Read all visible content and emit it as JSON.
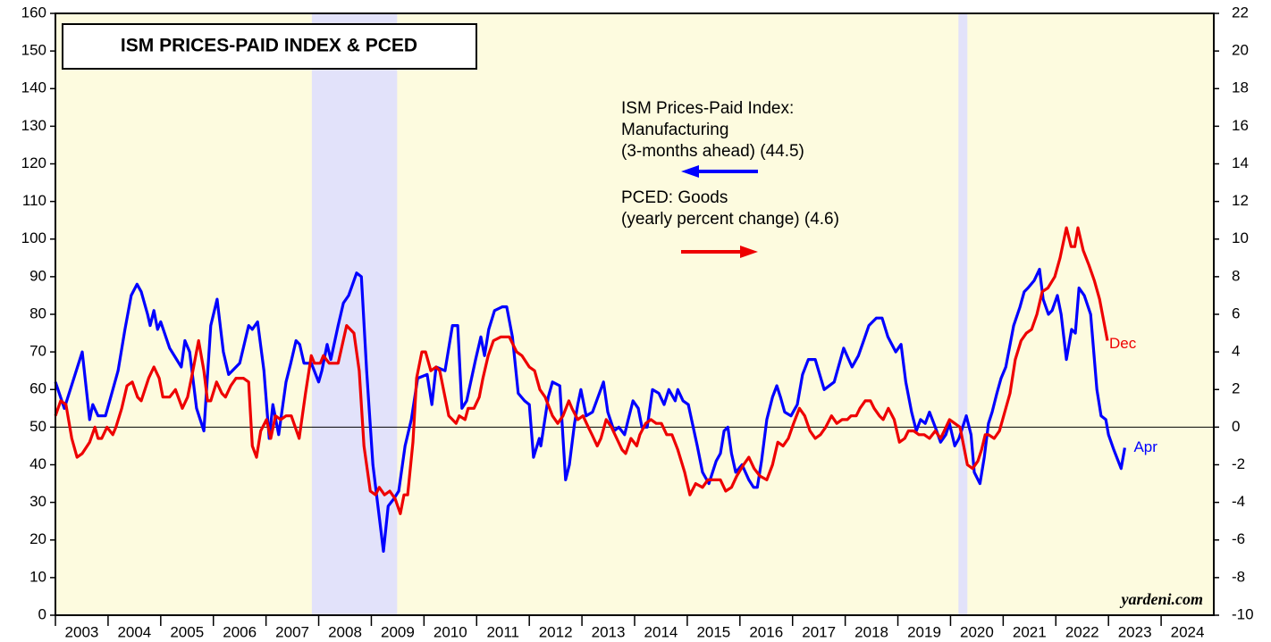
{
  "chart_data": {
    "type": "line",
    "title": "ISM PRICES-PAID INDEX & PCED",
    "credit": "yardeni.com",
    "categories": [
      "2003",
      "2004",
      "2005",
      "2006",
      "2007",
      "2008",
      "2009",
      "2010",
      "2011",
      "2012",
      "2013",
      "2014",
      "2015",
      "2016",
      "2017",
      "2018",
      "2019",
      "2020",
      "2021",
      "2022",
      "2023",
      "2024"
    ],
    "xlim": [
      2003,
      2025
    ],
    "ylim": [
      0,
      160
    ],
    "yticks": [
      0,
      10,
      20,
      30,
      40,
      50,
      60,
      70,
      80,
      90,
      100,
      110,
      120,
      130,
      140,
      150,
      160
    ],
    "y2lim": [
      -10,
      22
    ],
    "y2ticks": [
      -10,
      -8,
      -6,
      -4,
      -2,
      0,
      2,
      4,
      6,
      8,
      10,
      12,
      14,
      16,
      18,
      20,
      22
    ],
    "hline": 50,
    "shaded": [
      [
        2007.87,
        2009.49
      ],
      [
        2020.15,
        2020.32
      ]
    ],
    "series": [
      {
        "label_lines": [
          "ISM Prices-Paid Index:",
          "Manufacturing",
          "(3-months ahead) (44.5)"
        ],
        "end_label": "Apr",
        "color": "#0000ff",
        "arrow": "left",
        "x": [
          2003.0,
          2003.17,
          2003.51,
          2003.65,
          2003.71,
          2003.81,
          2003.95,
          2004.05,
          2004.19,
          2004.32,
          2004.44,
          2004.55,
          2004.63,
          2004.75,
          2004.8,
          2004.87,
          2004.94,
          2005.0,
          2005.17,
          2005.39,
          2005.46,
          2005.55,
          2005.68,
          2005.82,
          2005.95,
          2006.07,
          2006.19,
          2006.29,
          2006.36,
          2006.5,
          2006.67,
          2006.74,
          2006.84,
          2006.96,
          2007.06,
          2007.13,
          2007.24,
          2007.38,
          2007.47,
          2007.57,
          2007.64,
          2007.72,
          2007.86,
          2008.0,
          2008.06,
          2008.16,
          2008.23,
          2008.37,
          2008.47,
          2008.57,
          2008.72,
          2008.81,
          2008.91,
          2009.03,
          2009.23,
          2009.32,
          2009.43,
          2009.52,
          2009.64,
          2009.76,
          2009.88,
          2010.06,
          2010.15,
          2010.23,
          2010.4,
          2010.54,
          2010.64,
          2010.72,
          2010.81,
          2010.98,
          2011.08,
          2011.15,
          2011.23,
          2011.34,
          2011.49,
          2011.57,
          2011.68,
          2011.79,
          2011.91,
          2012.0,
          2012.08,
          2012.19,
          2012.22,
          2012.36,
          2012.44,
          2012.58,
          2012.69,
          2012.76,
          2012.86,
          2012.92,
          2012.98,
          2013.08,
          2013.2,
          2013.41,
          2013.49,
          2013.61,
          2013.7,
          2013.81,
          2013.88,
          2013.97,
          2014.07,
          2014.14,
          2014.24,
          2014.34,
          2014.46,
          2014.56,
          2014.65,
          2014.77,
          2014.82,
          2014.92,
          2015.02,
          2015.19,
          2015.29,
          2015.41,
          2015.55,
          2015.63,
          2015.7,
          2015.77,
          2015.84,
          2015.92,
          2016.04,
          2016.17,
          2016.26,
          2016.33,
          2016.41,
          2016.51,
          2016.62,
          2016.7,
          2016.77,
          2016.85,
          2016.97,
          2017.09,
          2017.19,
          2017.3,
          2017.43,
          2017.6,
          2017.79,
          2017.97,
          2018.13,
          2018.25,
          2018.35,
          2018.45,
          2018.59,
          2018.7,
          2018.81,
          2018.96,
          2019.06,
          2019.15,
          2019.26,
          2019.35,
          2019.43,
          2019.52,
          2019.6,
          2019.71,
          2019.81,
          2019.91,
          2019.98,
          2020.08,
          2020.16,
          2020.3,
          2020.39,
          2020.45,
          2020.56,
          2020.64,
          2020.72,
          2020.79,
          2020.88,
          2020.96,
          2021.05,
          2021.2,
          2021.32,
          2021.4,
          2021.47,
          2021.59,
          2021.69,
          2021.76,
          2021.86,
          2021.93,
          2022.03,
          2022.1,
          2022.2,
          2022.3,
          2022.37,
          2022.44,
          2022.54,
          2022.66,
          2022.78,
          2022.86,
          2022.95,
          2023.0,
          2023.1,
          2023.24,
          2023.31
        ],
        "values": [
          62,
          55,
          70,
          52,
          56,
          53,
          53,
          58,
          65,
          76,
          85,
          88,
          86,
          80,
          77,
          81,
          76,
          78,
          71,
          66,
          73,
          70,
          55,
          49,
          77,
          84,
          70,
          64,
          65,
          67,
          77,
          76,
          78,
          65,
          47,
          56,
          48,
          62,
          67,
          73,
          72,
          67,
          67,
          62,
          65,
          72,
          68,
          77,
          83,
          85,
          91,
          90,
          65,
          40,
          17,
          29,
          31,
          33,
          45,
          52,
          63,
          64,
          56,
          66,
          65,
          77,
          77,
          55,
          57,
          68,
          74,
          69,
          76,
          81,
          82,
          82,
          74,
          59,
          57,
          56,
          42,
          47,
          45,
          58,
          62,
          61,
          36,
          40,
          51,
          56,
          60,
          53,
          54,
          62,
          54,
          49,
          50,
          48,
          52,
          57,
          55,
          50,
          50,
          60,
          59,
          56,
          60,
          57,
          60,
          57,
          56,
          45,
          38,
          35,
          41,
          43,
          49,
          50,
          43,
          38,
          40,
          36,
          34,
          34,
          41,
          52,
          58,
          61,
          58,
          54,
          53,
          56,
          64,
          68,
          68,
          60,
          62,
          71,
          66,
          69,
          73,
          77,
          79,
          79,
          74,
          70,
          72,
          62,
          54,
          49,
          52,
          51,
          54,
          50,
          46,
          48,
          51,
          45,
          47,
          53,
          48,
          38,
          35,
          42,
          51,
          54,
          59,
          63,
          66,
          77,
          82,
          86,
          87,
          89,
          92,
          84,
          80,
          81,
          85,
          80,
          68,
          76,
          75,
          87,
          85,
          80,
          60,
          53,
          52,
          48,
          44,
          39,
          44.5
        ]
      },
      {
        "label_lines": [
          "PCED: Goods",
          "(yearly percent change) (4.6)"
        ],
        "end_label": "Dec",
        "color": "#ee0000",
        "arrow": "right",
        "axis": "y2",
        "x": [
          2003.0,
          2003.1,
          2003.2,
          2003.31,
          2003.41,
          2003.51,
          2003.65,
          2003.75,
          2003.81,
          2003.88,
          2003.98,
          2004.09,
          2004.15,
          2004.26,
          2004.36,
          2004.46,
          2004.56,
          2004.63,
          2004.77,
          2004.87,
          2004.97,
          2005.04,
          2005.17,
          2005.28,
          2005.41,
          2005.51,
          2005.61,
          2005.72,
          2005.82,
          2005.89,
          2005.95,
          2006.06,
          2006.16,
          2006.23,
          2006.33,
          2006.43,
          2006.57,
          2006.67,
          2006.74,
          2006.82,
          2006.9,
          2007.01,
          2007.09,
          2007.18,
          2007.28,
          2007.38,
          2007.48,
          2007.63,
          2007.75,
          2007.86,
          2007.92,
          2008.03,
          2008.09,
          2008.2,
          2008.37,
          2008.53,
          2008.67,
          2008.77,
          2008.86,
          2008.98,
          2009.08,
          2009.15,
          2009.25,
          2009.35,
          2009.45,
          2009.55,
          2009.62,
          2009.69,
          2009.79,
          2009.86,
          2009.96,
          2010.03,
          2010.13,
          2010.23,
          2010.3,
          2010.37,
          2010.47,
          2010.61,
          2010.67,
          2010.78,
          2010.84,
          2010.95,
          2011.05,
          2011.12,
          2011.22,
          2011.32,
          2011.46,
          2011.62,
          2011.76,
          2011.86,
          2012.0,
          2012.1,
          2012.2,
          2012.3,
          2012.44,
          2012.54,
          2012.64,
          2012.75,
          2012.81,
          2012.92,
          2013.02,
          2013.12,
          2013.19,
          2013.29,
          2013.36,
          2013.46,
          2013.56,
          2013.66,
          2013.76,
          2013.83,
          2013.93,
          2014.04,
          2014.1,
          2014.21,
          2014.31,
          2014.41,
          2014.51,
          2014.61,
          2014.71,
          2014.82,
          2014.95,
          2015.05,
          2015.16,
          2015.29,
          2015.39,
          2015.53,
          2015.63,
          2015.73,
          2015.84,
          2015.94,
          2016.07,
          2016.17,
          2016.27,
          2016.38,
          2016.51,
          2016.62,
          2016.72,
          2016.82,
          2016.92,
          2017.02,
          2017.13,
          2017.23,
          2017.33,
          2017.43,
          2017.53,
          2017.63,
          2017.74,
          2017.84,
          2017.94,
          2018.04,
          2018.11,
          2018.21,
          2018.28,
          2018.38,
          2018.48,
          2018.55,
          2018.65,
          2018.72,
          2018.82,
          2018.93,
          2019.03,
          2019.13,
          2019.2,
          2019.3,
          2019.4,
          2019.5,
          2019.6,
          2019.71,
          2019.81,
          2019.88,
          2019.98,
          2020.08,
          2020.18,
          2020.25,
          2020.32,
          2020.42,
          2020.52,
          2020.59,
          2020.66,
          2020.72,
          2020.83,
          2020.93,
          2021.03,
          2021.13,
          2021.23,
          2021.34,
          2021.44,
          2021.54,
          2021.64,
          2021.74,
          2021.85,
          2021.98,
          2022.08,
          2022.2,
          2022.29,
          2022.36,
          2022.42,
          2022.52,
          2022.63,
          2022.73,
          2022.83,
          2022.98
        ],
        "values": [
          0.6,
          1.4,
          1.2,
          -0.6,
          -1.6,
          -1.4,
          -0.8,
          0.0,
          -0.6,
          -0.6,
          0.0,
          -0.4,
          0.0,
          1.0,
          2.2,
          2.4,
          1.6,
          1.4,
          2.6,
          3.2,
          2.6,
          1.6,
          1.6,
          2.0,
          1.0,
          1.6,
          3.0,
          4.6,
          3.0,
          1.4,
          1.4,
          2.4,
          1.8,
          1.6,
          2.2,
          2.6,
          2.6,
          2.4,
          -1.0,
          -1.6,
          -0.2,
          0.4,
          -0.6,
          0.6,
          0.4,
          0.6,
          0.6,
          -0.6,
          1.8,
          3.8,
          3.4,
          3.4,
          3.8,
          3.4,
          3.4,
          5.4,
          5.0,
          3.0,
          -1.0,
          -3.4,
          -3.6,
          -3.2,
          -3.6,
          -3.4,
          -3.8,
          -4.6,
          -3.6,
          -3.6,
          -0.8,
          2.6,
          4.0,
          4.0,
          3.0,
          3.2,
          3.0,
          2.0,
          0.6,
          0.2,
          0.6,
          0.4,
          1.0,
          1.0,
          1.6,
          2.6,
          3.8,
          4.6,
          4.8,
          4.8,
          4.0,
          3.8,
          3.2,
          3.0,
          2.0,
          1.6,
          0.6,
          0.2,
          0.6,
          1.4,
          1.0,
          0.4,
          0.6,
          0.0,
          -0.4,
          -1.0,
          -0.6,
          0.4,
          0.0,
          -0.6,
          -1.2,
          -1.4,
          -0.6,
          -1.0,
          -0.4,
          0.2,
          0.4,
          0.2,
          0.2,
          -0.4,
          -0.4,
          -1.2,
          -2.4,
          -3.6,
          -3.0,
          -3.2,
          -2.8,
          -2.8,
          -2.8,
          -3.4,
          -3.2,
          -2.6,
          -2.0,
          -1.6,
          -2.2,
          -2.6,
          -2.8,
          -2.0,
          -0.8,
          -1.0,
          -0.6,
          0.2,
          1.0,
          0.6,
          -0.2,
          -0.6,
          -0.4,
          0.0,
          0.6,
          0.2,
          0.4,
          0.4,
          0.6,
          0.6,
          1.0,
          1.4,
          1.4,
          1.0,
          0.6,
          0.4,
          1.0,
          0.4,
          -0.8,
          -0.6,
          -0.2,
          -0.2,
          -0.4,
          -0.4,
          -0.6,
          -0.2,
          -0.6,
          -0.2,
          0.4,
          0.2,
          0.0,
          -1.0,
          -2.0,
          -2.2,
          -1.8,
          -1.2,
          -0.4,
          -0.4,
          -0.6,
          -0.2,
          0.8,
          1.8,
          3.6,
          4.6,
          5.0,
          5.2,
          6.0,
          7.2,
          7.4,
          8.0,
          9.0,
          10.6,
          9.6,
          9.6,
          10.6,
          9.4,
          8.6,
          7.8,
          6.8,
          4.6
        ]
      }
    ]
  }
}
